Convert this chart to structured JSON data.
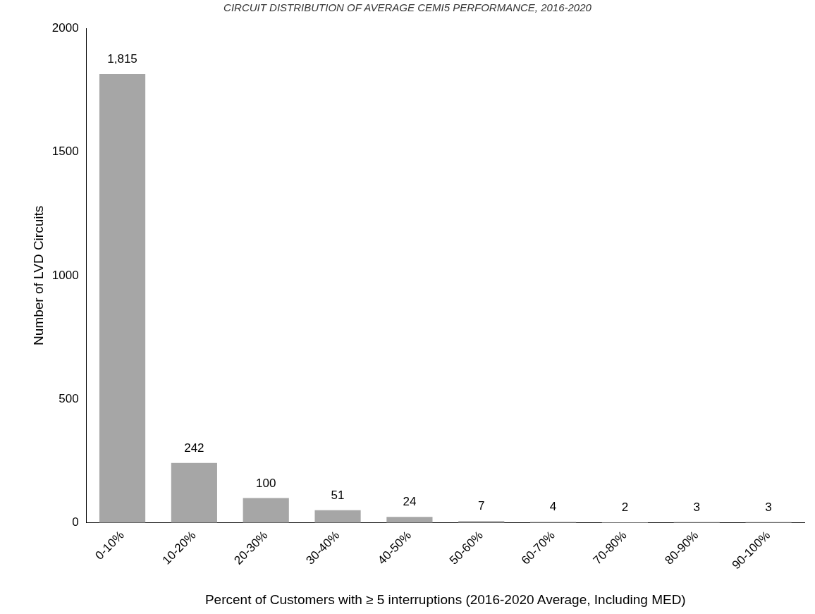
{
  "chart_data": {
    "type": "bar",
    "title": "CIRCUIT DISTRIBUTION OF AVERAGE CEMI5 PERFORMANCE, 2016-2020",
    "xlabel": "Percent of Customers with ≥ 5 interruptions (2016-2020 Average, Including MED)",
    "ylabel": "Number of LVD Circuits",
    "categories": [
      "0-10%",
      "10-20%",
      "20-30%",
      "30-40%",
      "40-50%",
      "50-60%",
      "60-70%",
      "70-80%",
      "80-90%",
      "90-100%"
    ],
    "values": [
      1815,
      242,
      100,
      51,
      24,
      7,
      4,
      2,
      3,
      3
    ],
    "value_labels": [
      "1,815",
      "242",
      "100",
      "51",
      "24",
      "7",
      "4",
      "2",
      "3",
      "3"
    ],
    "color": "#a6a6a6",
    "ylim": [
      0,
      2000
    ],
    "yticks": [
      0,
      500,
      1000,
      1500,
      2000
    ],
    "grid": false,
    "legend": false
  }
}
